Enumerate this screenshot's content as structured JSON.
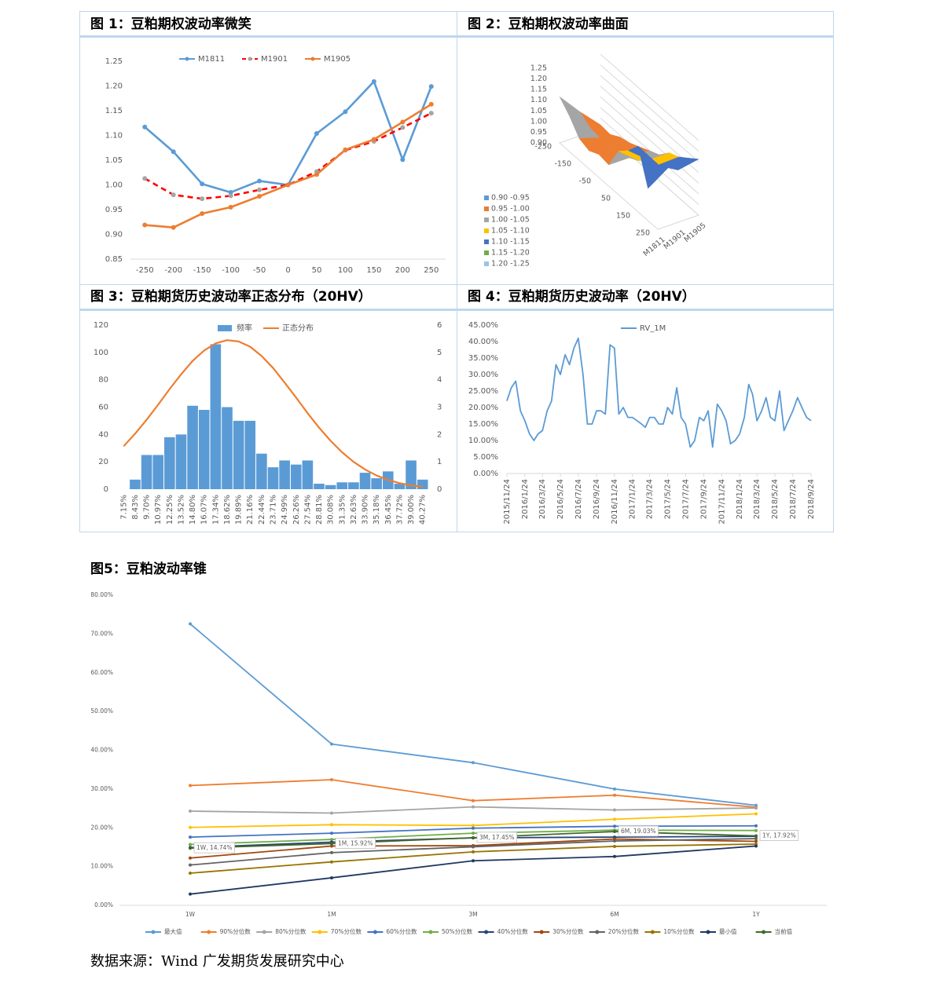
{
  "chart_data": [
    {
      "type": "line",
      "title": "图 1：豆粕期权波动率微笑",
      "categories": [
        "-250",
        "-200",
        "-150",
        "-100",
        "-50",
        "0",
        "50",
        "100",
        "150",
        "200",
        "250"
      ],
      "series": [
        {
          "name": "M1811",
          "color": "#5b9bd5",
          "values": [
            1.117,
            1.067,
            1.002,
            0.985,
            1.008,
            1.0,
            1.104,
            1.148,
            1.209,
            1.051,
            1.199
          ]
        },
        {
          "name": "M1901",
          "color": "#ff0000",
          "marker_color": "#a5a5a5",
          "line_style": "dashed",
          "values": [
            1.013,
            0.98,
            0.972,
            0.978,
            0.99,
            1.0,
            1.027,
            1.07,
            1.088,
            1.116,
            1.145
          ]
        },
        {
          "name": "M1905",
          "color": "#ed7d31",
          "values": [
            0.919,
            0.914,
            0.942,
            0.955,
            0.977,
            1.0,
            1.021,
            1.071,
            1.092,
            1.127,
            1.163
          ]
        }
      ],
      "ylim": [
        0.85,
        1.25
      ],
      "yticks": [
        0.85,
        {
          "value": 0.9,
          "label": "0.90"
        },
        0.95,
        {
          "value": 1.0,
          "label": "1.00"
        },
        1.05,
        {
          "value": 1.1,
          "label": "1.10"
        },
        1.15,
        {
          "value": 1.2,
          "label": "1.20"
        },
        1.25
      ],
      "markers": true,
      "legend": "top"
    },
    {
      "type": "surface",
      "title": "图 2：豆粕期权波动率曲面",
      "categories": [
        "-250",
        null,
        "-150",
        null,
        "-50",
        null,
        "50",
        null,
        "150",
        null,
        "250"
      ],
      "series": [
        {
          "name": "M1811",
          "values": [
            1.117,
            1.067,
            1.002,
            0.985,
            1.008,
            1.0,
            1.104,
            1.148,
            1.209,
            1.051,
            1.199
          ]
        },
        {
          "name": "M1901",
          "values": [
            1.013,
            0.98,
            0.972,
            0.978,
            0.99,
            1.0,
            1.027,
            1.07,
            1.088,
            1.116,
            1.145
          ]
        },
        {
          "name": "M1905",
          "values": [
            0.919,
            0.914,
            0.942,
            0.955,
            0.977,
            1.0,
            1.021,
            1.071,
            1.092,
            1.127,
            1.163
          ]
        }
      ],
      "zlim": [
        0.9,
        1.25
      ],
      "zticks": [
        {
          "value": 0.9,
          "label": "0.90"
        },
        0.95,
        {
          "value": 1.0,
          "label": "1.00"
        },
        1.05,
        {
          "value": 1.1,
          "label": "1.10"
        },
        1.15,
        {
          "value": 1.2,
          "label": "1.20"
        },
        1.25
      ],
      "bands": [
        {
          "name": "0.90 -0.95",
          "color": "#5b9bd5"
        },
        {
          "name": "0.95 -1.00",
          "color": "#ed7d31"
        },
        {
          "name": "1.00 -1.05",
          "color": "#a5a5a5"
        },
        {
          "name": "1.05 -1.10",
          "color": "#ffc000"
        },
        {
          "name": "1.10 -1.15",
          "color": "#4472c4"
        },
        {
          "name": "1.15 -1.20",
          "color": "#70ad47"
        },
        {
          "name": "1.20 -1.25",
          "color": "#9dc3e6"
        }
      ]
    },
    {
      "type": "bar_line",
      "title": "图 3：豆粕期货历史波动率正态分布（20HV）",
      "categories": [
        "7.15%",
        "8.43%",
        "9.70%",
        "10.97%",
        "12.25%",
        "13.52%",
        "14.80%",
        "16.07%",
        "17.34%",
        "18.62%",
        "19.89%",
        "21.16%",
        "22.44%",
        "23.71%",
        "24.99%",
        "26.26%",
        "27.54%",
        "28.81%",
        "30.08%",
        "31.35%",
        "32.63%",
        "33.90%",
        "35.18%",
        "36.45%",
        "37.72%",
        "39.00%",
        "40.27%"
      ],
      "series": [
        {
          "name": "频率",
          "kind": "bar",
          "color": "#5b9bd5",
          "values": [
            0,
            7,
            25,
            25,
            38,
            40,
            61,
            58,
            106,
            60,
            50,
            50,
            26,
            16,
            21,
            18,
            21,
            4,
            3,
            5,
            5,
            12,
            8,
            13,
            4,
            21,
            7
          ]
        },
        {
          "name": "正态分布",
          "kind": "line",
          "axis": "y2",
          "color": "#ed7d31",
          "values": [
            1.57,
            2.03,
            2.54,
            3.09,
            3.66,
            4.2,
            4.69,
            5.07,
            5.33,
            5.45,
            5.4,
            5.21,
            4.87,
            4.43,
            3.9,
            3.35,
            2.78,
            2.25,
            1.77,
            1.35,
            1.0,
            0.72,
            0.5,
            0.34,
            0.22,
            0.14,
            0.09
          ]
        }
      ],
      "ylim": [
        0,
        120
      ],
      "yticks": [
        0,
        20,
        40,
        60,
        80,
        100,
        120
      ],
      "y2lim": [
        0,
        6
      ],
      "y2ticks": [
        0,
        1,
        2,
        3,
        4,
        5,
        6
      ],
      "legend": "top"
    },
    {
      "type": "line",
      "title": "图 4：豆粕期货历史波动率（20HV）",
      "x": [
        "2015/11/24",
        "2015/12/9",
        "2015/12/24",
        "2016/1/9",
        "2016/1/24",
        "2016/2/9",
        "2016/2/24",
        "2016/3/9",
        "2016/3/24",
        "2016/4/9",
        "2016/4/24",
        "2016/5/9",
        "2016/5/24",
        "2016/6/9",
        "2016/6/24",
        "2016/7/9",
        "2016/7/24",
        "2016/8/9",
        "2016/8/24",
        "2016/9/9",
        "2016/9/24",
        "2016/10/9",
        "2016/10/24",
        "2016/11/9",
        "2016/11/24",
        "2016/12/9",
        "2016/12/24",
        "2017/1/9",
        "2017/1/24",
        "2017/2/9",
        "2017/2/24",
        "2017/3/9",
        "2017/3/24",
        "2017/4/9",
        "2017/4/24",
        "2017/5/9",
        "2017/5/24",
        "2017/6/9",
        "2017/6/24",
        "2017/7/9",
        "2017/7/24",
        "2017/8/9",
        "2017/8/24",
        "2017/9/9",
        "2017/9/24",
        "2017/10/9",
        "2017/10/24",
        "2017/11/9",
        "2017/11/24",
        "2017/12/9",
        "2017/12/24",
        "2018/1/9",
        "2018/1/24",
        "2018/2/9",
        "2018/2/24",
        "2018/3/9",
        "2018/3/24",
        "2018/4/9",
        "2018/4/24",
        "2018/5/9",
        "2018/5/24",
        "2018/6/9",
        "2018/6/24",
        "2018/7/9",
        "2018/7/24",
        "2018/8/9",
        "2018/8/24",
        "2018/9/9",
        "2018/9/24"
      ],
      "series": [
        {
          "name": "RV_1M",
          "color": "#5b9bd5",
          "values": [
            22,
            26,
            28,
            19,
            16,
            12,
            10,
            12,
            13,
            19,
            22,
            33,
            30,
            36,
            33,
            38,
            41,
            30,
            15,
            15,
            19,
            19,
            18,
            39,
            38,
            18,
            20,
            17,
            17,
            16,
            15,
            14,
            17,
            17,
            15,
            15,
            20,
            18,
            26,
            17,
            15,
            8,
            10,
            17,
            16,
            19,
            8,
            21,
            19,
            16,
            9,
            10,
            12,
            17,
            27,
            24,
            16,
            19,
            23,
            17,
            16,
            25,
            13,
            16,
            19,
            23,
            20,
            17,
            16
          ]
        }
      ],
      "xlim": [
        "2015/11/24",
        "2018/9/24"
      ],
      "xticks": [
        "2015/11/24",
        "2016/1/24",
        "2016/3/24",
        "2016/5/24",
        "2016/7/24",
        "2016/9/24",
        "2016/11/24",
        "2017/1/24",
        "2017/3/24",
        "2017/5/24",
        "2017/7/24",
        "2017/9/24",
        "2017/11/24",
        "2018/1/24",
        "2018/3/24",
        "2018/5/24",
        "2018/7/24",
        "2018/9/24"
      ],
      "ylim": [
        0,
        45
      ],
      "yticks": [
        {
          "value": 0,
          "label": "0.00%"
        },
        {
          "value": 5,
          "label": "5.00%"
        },
        {
          "value": 10,
          "label": "10.00%"
        },
        {
          "value": 15,
          "label": "15.00%"
        },
        {
          "value": 20,
          "label": "20.00%"
        },
        {
          "value": 25,
          "label": "25.00%"
        },
        {
          "value": 30,
          "label": "30.00%"
        },
        {
          "value": 35,
          "label": "35.00%"
        },
        {
          "value": 40,
          "label": "40.00%"
        },
        {
          "value": 45,
          "label": "45.00%"
        }
      ],
      "legend": "top"
    },
    {
      "type": "line",
      "title": "图5：豆粕波动率锥",
      "categories": [
        "1W",
        "1M",
        "3M",
        "6M",
        "1Y"
      ],
      "series": [
        {
          "name": "最大值",
          "color": "#5b9bd5",
          "values": [
            72.6,
            41.6,
            36.8,
            30.0,
            25.8
          ]
        },
        {
          "name": "90%分位数",
          "color": "#ed7d31",
          "values": [
            30.9,
            32.4,
            27.0,
            28.4,
            25.3
          ]
        },
        {
          "name": "80%分位数",
          "color": "#a5a5a5",
          "values": [
            24.3,
            23.8,
            25.4,
            24.6,
            25.1
          ]
        },
        {
          "name": "70%分位数",
          "color": "#ffc000",
          "values": [
            20.1,
            20.8,
            20.6,
            22.2,
            23.6
          ]
        },
        {
          "name": "60%分位数",
          "color": "#4472c4",
          "values": [
            17.6,
            18.6,
            19.9,
            20.4,
            20.5
          ]
        },
        {
          "name": "50%分位数",
          "color": "#70ad47",
          "values": [
            15.7,
            17.0,
            18.6,
            19.4,
            19.3
          ]
        },
        {
          "name": "40%分位数",
          "color": "#264478",
          "values": [
            14.9,
            16.3,
            17.4,
            17.6,
            17.8
          ]
        },
        {
          "name": "30%分位数",
          "color": "#9e480e",
          "values": [
            12.2,
            15.3,
            15.4,
            17.1,
            16.5
          ]
        },
        {
          "name": "20%分位数",
          "color": "#636363",
          "values": [
            10.4,
            13.6,
            15.1,
            16.6,
            17.2
          ]
        },
        {
          "name": "10%分位数",
          "color": "#997300",
          "values": [
            8.3,
            11.2,
            13.8,
            15.2,
            15.8
          ]
        },
        {
          "name": "最小值",
          "color": "#203864",
          "values": [
            2.9,
            7.1,
            11.5,
            12.6,
            15.3
          ]
        },
        {
          "name": "当前值",
          "color": "#43682b",
          "values": [
            14.74,
            15.92,
            17.45,
            19.03,
            17.92
          ],
          "value_labels": [
            "1W, 14.74%",
            "1M, 15.92%",
            "3M, 17.45%",
            "6M, 19.03%",
            "1Y, 17.92%"
          ]
        }
      ],
      "ylim": [
        0,
        80
      ],
      "yticks": [
        {
          "value": 0,
          "label": "0.00%"
        },
        {
          "value": 10,
          "label": "10.00%"
        },
        {
          "value": 20,
          "label": "20.00%"
        },
        {
          "value": 30,
          "label": "30.00%"
        },
        {
          "value": 40,
          "label": "40.00%"
        },
        {
          "value": 50,
          "label": "50.00%"
        },
        {
          "value": 60,
          "label": "60.00%"
        },
        {
          "value": 70,
          "label": "70.00%"
        },
        {
          "value": 80,
          "label": "80.00%"
        }
      ],
      "markers": true,
      "legend": "bottom"
    }
  ],
  "source": "数据来源：Wind 广发期货发展研究中心"
}
